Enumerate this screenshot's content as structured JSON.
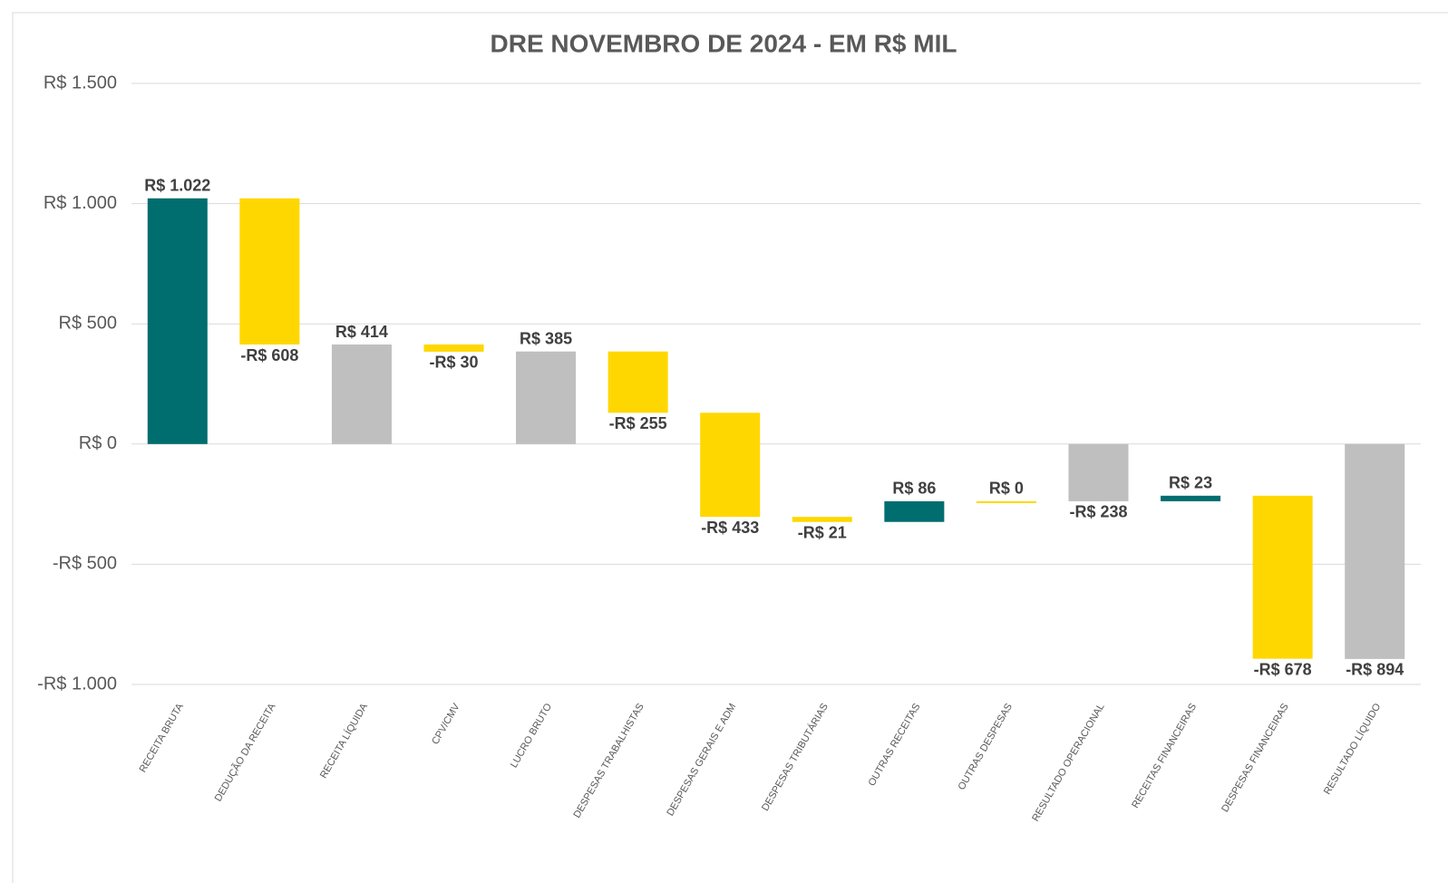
{
  "chart_data": {
    "type": "waterfall",
    "title": "DRE NOVEMBRO DE 2024 - EM R$ MIL",
    "categories": [
      "RECEITA BRUTA",
      "DEDUÇÃO DA RECEITA",
      "RECEITA LÍQUIDA",
      "CPV/CMV",
      "LUCRO BRUTO",
      "DESPESAS TRABALHISTAS",
      "DESPESAS GERAIS E ADM",
      "DESPESAS TRIBUTÁRIAS",
      "OUTRAS RECEITAS",
      "OUTRAS DESPESAS",
      "RESULTADO OPERACIONAL",
      "RECEITAS FINANCEIRAS",
      "DESPESAS FINANCEIRAS",
      "RESULTADO LÍQUIDO"
    ],
    "measure": [
      "absolute",
      "relative",
      "absolute",
      "relative",
      "absolute",
      "relative",
      "relative",
      "relative",
      "relative",
      "relative",
      "absolute",
      "relative",
      "relative",
      "absolute"
    ],
    "values": [
      1022,
      -608,
      414,
      -30,
      385,
      -255,
      -433,
      -21,
      86,
      0,
      -238,
      23,
      -678,
      -894
    ],
    "value_labels": [
      "R$ 1.022",
      "-R$ 608",
      "R$ 414",
      "-R$ 30",
      "R$ 385",
      "-R$ 255",
      "-R$ 433",
      "-R$ 21",
      "R$ 86",
      "R$ 0",
      "-R$ 238",
      "R$ 23",
      "-R$ 678",
      "-R$ 894"
    ],
    "colors": [
      "#006d6f",
      "#ffd700",
      "#bfbfbf",
      "#ffd700",
      "#bfbfbf",
      "#ffd700",
      "#ffd700",
      "#ffd700",
      "#006d6f",
      "#ffd700",
      "#bfbfbf",
      "#006d6f",
      "#ffd700",
      "#bfbfbf"
    ],
    "ylim": [
      -1000,
      1500
    ],
    "yticks": [
      {
        "value": -1000,
        "label": "-R$ 1.000"
      },
      {
        "value": -500,
        "label": "-R$ 500"
      },
      {
        "value": 0,
        "label": "R$ 0"
      },
      {
        "value": 500,
        "label": "R$ 500"
      },
      {
        "value": 1000,
        "label": "R$ 1.000"
      },
      {
        "value": 1500,
        "label": "R$ 1.500"
      }
    ],
    "grid": true
  }
}
